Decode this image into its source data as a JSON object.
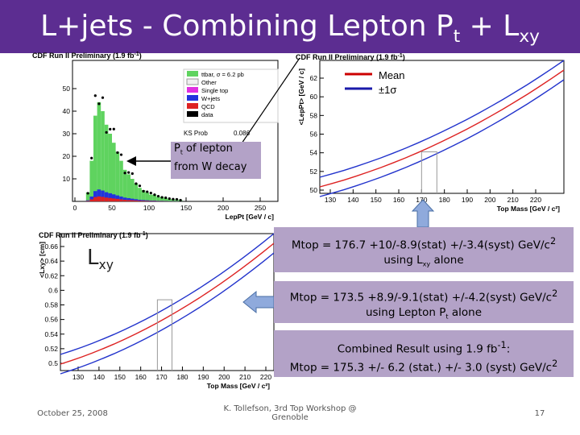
{
  "header": {
    "title": [
      "L+jets - Combining Lepton P",
      "t",
      " + L",
      "xy"
    ]
  },
  "plots": [
    {
      "header": [
        "CDF Run II Preliminary (1.9 fb",
        "-1",
        ")"
      ],
      "yticks": [
        "10",
        "20",
        "30",
        "40",
        "50"
      ],
      "xticks": [
        "0",
        "50",
        "100",
        "150",
        "200",
        "250"
      ],
      "xlabel": "LepPt [GeV / c]",
      "legend": [
        "ttbar, σ = 6.2 pb",
        "Other",
        "Single top",
        "W+jets",
        "QCD",
        "data"
      ],
      "ks": [
        "KS Prob",
        "0.086"
      ]
    },
    {
      "header": [
        "CDF Run II Preliminary (1.9 fb",
        "-1",
        ")"
      ],
      "yticks": [
        "50",
        "52",
        "54",
        "56",
        "58",
        "60",
        "62"
      ],
      "xticks": [
        "130",
        "140",
        "150",
        "160",
        "170",
        "180",
        "190",
        "200",
        "210",
        "220"
      ],
      "xlabel": "Top Mass [GeV / c²]",
      "ylabel": "<LepPt> [GeV / c]"
    },
    {
      "header": [
        "CDF Run II Preliminary (1.9 fb",
        "-1",
        ")"
      ],
      "yticks": [
        "0.5",
        "0.52",
        "0.54",
        "0.56",
        "0.58",
        "0.6",
        "0.62",
        "0.64",
        "0.66"
      ],
      "xticks": [
        "130",
        "140",
        "150",
        "160",
        "170",
        "180",
        "190",
        "200",
        "210",
        "220"
      ],
      "xlabel": "Top Mass [GeV / c²]",
      "ylabel": "<Lxy> [cm]"
    }
  ],
  "legend": [
    "Mean",
    "±1σ"
  ],
  "callouts": {
    "pt": [
      "P",
      "t",
      " of lepton",
      "from W decay"
    ],
    "lxy": [
      "L",
      "xy"
    ]
  },
  "results": [
    {
      "line1": [
        "Mtop = 176.7 +10/-8.9(stat) +/-3.4(syst) GeV/c",
        "2"
      ],
      "line2": [
        "using L",
        "xy",
        " alone"
      ]
    },
    {
      "line1": [
        "Mtop = 173.5 +8.9/-9.1(stat) +/-4.2(syst) GeV/c",
        "2"
      ],
      "line2": [
        "using Lepton P",
        "t",
        " alone"
      ]
    },
    {
      "line1": [
        "Combined Result using 1.9 fb",
        "-1",
        ":"
      ],
      "line2": [
        "Mtop = 175.3 +/- 6.2 (stat.) +/- 3.0 (syst) GeV/c",
        "2"
      ]
    }
  ],
  "footer": {
    "date": "October 25, 2008",
    "author": "K. Tollefson, 3rd Top Workshop @ Grenoble",
    "page": "17"
  }
}
